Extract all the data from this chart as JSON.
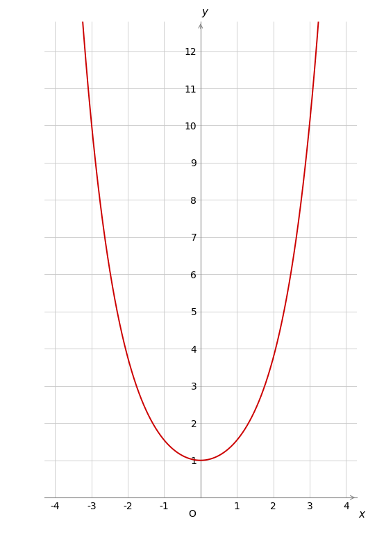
{
  "xlabel": "x",
  "ylabel": "y",
  "xlim": [
    -4.3,
    4.3
  ],
  "ylim": [
    0,
    12.8
  ],
  "x_ticks": [
    -4,
    -3,
    -2,
    -1,
    1,
    2,
    3,
    4
  ],
  "y_ticks": [
    1,
    2,
    3,
    4,
    5,
    6,
    7,
    8,
    9,
    10,
    11,
    12
  ],
  "curve_color": "#cc0000",
  "curve_linewidth": 1.4,
  "background_color": "#ffffff",
  "grid_color": "#c8c8c8",
  "axis_color": "#888888",
  "x_range": [
    -3.55,
    3.55
  ],
  "origin_label": "O"
}
